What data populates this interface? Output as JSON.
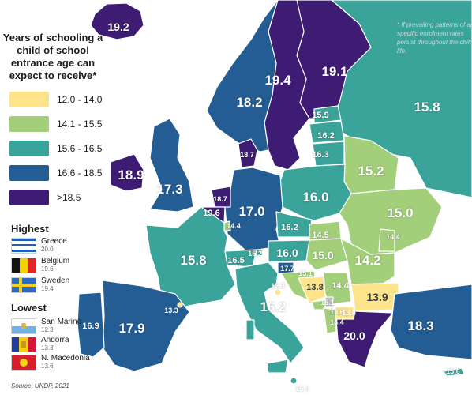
{
  "legend": {
    "title": "Years of schooling a child of school entrance age can expect to receive*",
    "bins": [
      {
        "label": "12.0 - 14.0",
        "color": "#fde48b"
      },
      {
        "label": "14.1 - 15.5",
        "color": "#a3cf7a"
      },
      {
        "label": "15.6 - 16.5",
        "color": "#3aa39a"
      },
      {
        "label": "16.6 - 18.5",
        "color": "#245d94"
      },
      {
        "label": ">18.5",
        "color": "#3e1c74"
      }
    ]
  },
  "highest": {
    "title": "Highest",
    "items": [
      {
        "country": "Greece",
        "value": "20.0",
        "flag": "greece-flag"
      },
      {
        "country": "Belgium",
        "value": "19.6",
        "flag": "belgium-flag"
      },
      {
        "country": "Sweden",
        "value": "19.4",
        "flag": "sweden-flag"
      }
    ]
  },
  "lowest": {
    "title": "Lowest",
    "items": [
      {
        "country": "San Marino",
        "value": "12.3",
        "flag": "san-marino-flag"
      },
      {
        "country": "Andorra",
        "value": "13.3",
        "flag": "andorra-flag"
      },
      {
        "country": "N. Macedonia",
        "value": "13.6",
        "flag": "north-macedonia-flag"
      }
    ]
  },
  "note": "* If prevailing patterns of age-specific enrolment rates persist throughout the child's life.",
  "source": "Source: UNDP, 2021",
  "map_values": {
    "iceland": "19.2",
    "norway": "18.2",
    "sweden": "19.4",
    "finland": "19.1",
    "russia": "15.8",
    "estonia": "15.9",
    "latvia": "16.2",
    "lithuania": "16.3",
    "belarus": "15.2",
    "ireland": "18.9",
    "uk": "17.3",
    "denmark": "18.7",
    "netherlands": "18.7",
    "belgium": "19.6",
    "luxembourg": "14.4",
    "germany": "17.0",
    "poland": "16.0",
    "ukraine": "15.0",
    "france": "15.8",
    "czechia": "16.2",
    "slovakia": "14.5",
    "moldova": "14.4",
    "switzerland": "16.5",
    "austria": "16.0",
    "liechtenstein": "15.2",
    "hungary": "15.0",
    "romania": "14.2",
    "slovenia": "17.7",
    "croatia": "15.1",
    "bosnia": "13.8",
    "serbia": "14.4",
    "montenegro": "15.1",
    "bulgaria": "13.9",
    "kosovo": "13.6",
    "albania": "14.4",
    "north_macedonia": "13.6",
    "greece": "20.0",
    "italy": "16.2",
    "andorra": "13.3",
    "spain": "17.9",
    "portugal": "16.9",
    "turkey": "18.3",
    "malta": "16.8",
    "cyprus": "15.6",
    "san_marino": "12.3"
  },
  "colors": {
    "bin1": "#fde48b",
    "bin2": "#a3cf7a",
    "bin3": "#3aa39a",
    "bin4": "#245d94",
    "bin5": "#3e1c74",
    "no_data": "#bdbdbd"
  }
}
